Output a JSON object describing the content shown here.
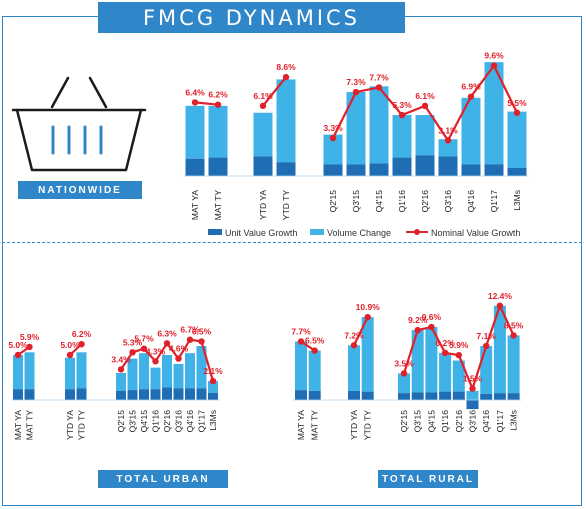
{
  "title": "FMCG DYNAMICS",
  "legend": {
    "unit": "Unit Value Growth",
    "volume": "Volume Change",
    "nominal": "Nominal Value Growth"
  },
  "colors": {
    "unit": "#1f6db3",
    "volume": "#3fb3e8",
    "nominal": "#e0202a",
    "accent": "#2f86c8"
  },
  "icon": "shopping-basket-icon",
  "chart_data": [
    {
      "type": "bar",
      "name": "NATIONWIDE",
      "categories": [
        "MAT YA",
        "MAT TY",
        "YTD YA",
        "YTD TY",
        "Q2'15",
        "Q3'15",
        "Q4'15",
        "Q1'16",
        "Q2'16",
        "Q3'16",
        "Q4'16",
        "Q1'17",
        "L3Ms"
      ],
      "groups": [
        2,
        2,
        9
      ],
      "series": [
        {
          "name": "Unit Value Growth",
          "values": [
            1.5,
            1.6,
            1.7,
            1.2,
            1.0,
            1.0,
            1.1,
            1.6,
            1.8,
            1.7,
            1.0,
            1.0,
            0.7
          ]
        },
        {
          "name": "Volume Change",
          "values": [
            4.6,
            4.5,
            3.8,
            7.2,
            2.6,
            6.3,
            6.7,
            3.7,
            3.5,
            1.5,
            5.8,
            8.9,
            4.9
          ]
        },
        {
          "name": "Nominal Value Growth",
          "values": [
            6.4,
            6.2,
            6.1,
            8.6,
            3.3,
            7.3,
            7.7,
            5.3,
            6.1,
            3.1,
            6.9,
            9.6,
            5.5
          ]
        }
      ],
      "data_labels": [
        "6.4%",
        "6.2%",
        "6.1%",
        "8.6%",
        "3.3%",
        "7.3%",
        "7.7%",
        "5.3%",
        "6.1%",
        "3.1%",
        "6.9%",
        "9.6%",
        "5.5%"
      ]
    },
    {
      "type": "bar",
      "name": "TOTAL URBAN",
      "categories": [
        "MAT YA",
        "MAT TY",
        "YTD YA",
        "YTD TY",
        "Q2'15",
        "Q3'15",
        "Q4'15",
        "Q1'16",
        "Q2'16",
        "Q3'16",
        "Q4'16",
        "Q1'17",
        "L3Ms"
      ],
      "groups": [
        2,
        2,
        9
      ],
      "series": [
        {
          "name": "Unit Value Growth",
          "values": [
            1.2,
            1.2,
            1.2,
            1.3,
            1.0,
            1.1,
            1.2,
            1.2,
            1.4,
            1.3,
            1.3,
            1.3,
            0.8
          ]
        },
        {
          "name": "Volume Change",
          "values": [
            3.8,
            4.1,
            3.5,
            4.0,
            2.0,
            3.5,
            4.0,
            2.4,
            3.6,
            2.7,
            3.9,
            4.7,
            1.3
          ]
        },
        {
          "name": "Nominal Value Growth",
          "values": [
            5.0,
            5.9,
            5.0,
            6.2,
            3.4,
            5.3,
            5.7,
            4.3,
            6.3,
            4.6,
            6.7,
            6.5,
            2.1
          ]
        }
      ],
      "data_labels": [
        "5.0%",
        "5.9%",
        "5.0%",
        "6.2%",
        "3.4%",
        "5.3%",
        "5.7%",
        "4.3%",
        "6.3%",
        "4.6%",
        "6.7%",
        "6.5%",
        "2.1%"
      ]
    },
    {
      "type": "bar",
      "name": "TOTAL RURAL",
      "categories": [
        "MAT YA",
        "MAT TY",
        "YTD YA",
        "YTD TY",
        "Q2'15",
        "Q3'15",
        "Q4'15",
        "Q1'16",
        "Q2'16",
        "Q3'16",
        "Q4'16",
        "Q1'17",
        "L3Ms"
      ],
      "groups": [
        2,
        2,
        9
      ],
      "series": [
        {
          "name": "Unit Value Growth",
          "values": [
            1.3,
            1.2,
            1.2,
            1.1,
            0.9,
            1.0,
            1.0,
            1.1,
            1.1,
            -1.2,
            0.8,
            0.9,
            0.9
          ]
        },
        {
          "name": "Volume Change",
          "values": [
            6.4,
            5.3,
            6.0,
            9.8,
            2.6,
            8.2,
            8.6,
            5.1,
            4.1,
            1.2,
            6.3,
            11.5,
            7.6
          ]
        },
        {
          "name": "Nominal Value Growth",
          "values": [
            7.7,
            6.5,
            7.2,
            10.9,
            3.5,
            9.2,
            9.6,
            6.2,
            5.9,
            1.5,
            7.1,
            12.4,
            8.5
          ]
        }
      ],
      "data_labels": [
        "7.7%",
        "6.5%",
        "7.2%",
        "10.9%",
        "3.5%",
        "9.2%",
        "9.6%",
        "6.2%",
        "5.9%",
        "1.5%",
        "7.1%",
        "12.4%",
        "8.5%"
      ]
    }
  ]
}
